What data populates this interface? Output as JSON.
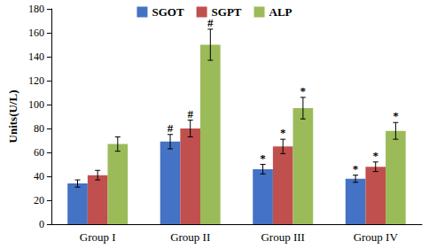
{
  "chart_data": {
    "type": "bar",
    "y_label": "Units(U/L)",
    "categories": [
      "Group I",
      "Group II",
      "Group III",
      "Group IV"
    ],
    "series": [
      {
        "name": "SGOT",
        "color": "#4472c4",
        "values": [
          34,
          69,
          46,
          38
        ],
        "errors": [
          3,
          6,
          4,
          3
        ],
        "annotations": [
          null,
          "#",
          "*",
          "*"
        ]
      },
      {
        "name": "SGPT",
        "color": "#c0504d",
        "values": [
          41,
          80,
          65,
          48
        ],
        "errors": [
          4,
          7,
          6,
          4
        ],
        "annotations": [
          null,
          "#",
          "*",
          "*"
        ]
      },
      {
        "name": "ALP",
        "color": "#9bbb59",
        "values": [
          67,
          150,
          97,
          78
        ],
        "errors": [
          6,
          13,
          9,
          7
        ],
        "annotations": [
          null,
          "#",
          "*",
          "*"
        ]
      }
    ],
    "ylim": [
      0,
      180
    ],
    "yticks": [
      0,
      20,
      40,
      60,
      80,
      100,
      120,
      140,
      160,
      180
    ],
    "grid": false,
    "legend": "top"
  }
}
